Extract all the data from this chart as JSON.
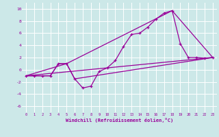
{
  "bg_color": "#cce8e8",
  "grid_color": "#aadddd",
  "line_color": "#990099",
  "marker": "+",
  "xlabel": "Windchill (Refroidissement éolien,°C)",
  "xlim": [
    -0.5,
    23.5
  ],
  "ylim": [
    -7,
    11
  ],
  "xticks": [
    0,
    1,
    2,
    3,
    4,
    5,
    6,
    7,
    8,
    9,
    10,
    11,
    12,
    13,
    14,
    15,
    16,
    17,
    18,
    19,
    20,
    21,
    22,
    23
  ],
  "yticks": [
    -6,
    -4,
    -2,
    0,
    2,
    4,
    6,
    8,
    10
  ],
  "line1_x": [
    0,
    1,
    2,
    3,
    4,
    5,
    6,
    7,
    8,
    9,
    10,
    11,
    12,
    13,
    14,
    15,
    16,
    17,
    18,
    19,
    20,
    21,
    22,
    23
  ],
  "line1_y": [
    -1,
    -1,
    -1,
    -1,
    1,
    1,
    -1.5,
    -3,
    -2.7,
    -0.3,
    0.3,
    1.5,
    3.8,
    5.8,
    6,
    7,
    8.3,
    9.3,
    9.7,
    4.3,
    2,
    2,
    1.9,
    2
  ],
  "line2_x": [
    0,
    3,
    4,
    5,
    6,
    23
  ],
  "line2_y": [
    -1,
    -1,
    1,
    1,
    -1.5,
    2
  ],
  "line3_x": [
    0,
    5,
    18,
    23
  ],
  "line3_y": [
    -1,
    1,
    9.7,
    2
  ],
  "line4_x": [
    0,
    23
  ],
  "line4_y": [
    -1,
    2
  ]
}
